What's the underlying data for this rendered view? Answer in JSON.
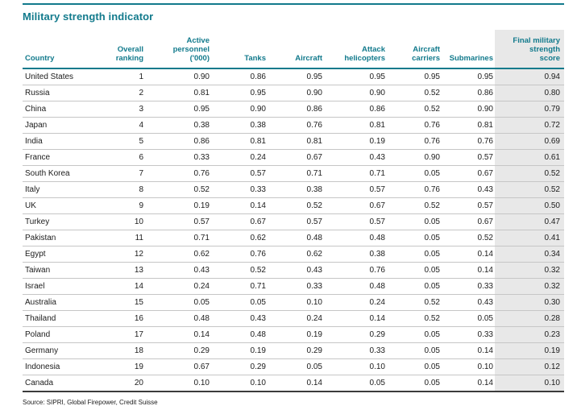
{
  "title": "Military strength indicator",
  "source": "Source: SIPRI, Global Firepower, Credit Suisse",
  "colors": {
    "accent_teal": "#127A8C",
    "highlight_column_bg": "#E8E8E8",
    "row_divider": "#C6C6C6",
    "table_bottom_rule": "#3B3B3B"
  },
  "table": {
    "headers": [
      {
        "label": "Country"
      },
      {
        "label": "Overall\nranking"
      },
      {
        "label": "Active\npersonnel\n('000)"
      },
      {
        "label": "Tanks"
      },
      {
        "label": "Aircraft"
      },
      {
        "label": "Attack\nhelicopters"
      },
      {
        "label": "Aircraft\ncarriers"
      },
      {
        "label": "Submarines"
      },
      {
        "label": "Final military\nstrength\nscore"
      }
    ],
    "rows": [
      [
        "United States",
        "1",
        "0.90",
        "0.86",
        "0.95",
        "0.95",
        "0.95",
        "0.95",
        "0.94"
      ],
      [
        "Russia",
        "2",
        "0.81",
        "0.95",
        "0.90",
        "0.90",
        "0.52",
        "0.86",
        "0.80"
      ],
      [
        "China",
        "3",
        "0.95",
        "0.90",
        "0.86",
        "0.86",
        "0.52",
        "0.90",
        "0.79"
      ],
      [
        "Japan",
        "4",
        "0.38",
        "0.38",
        "0.76",
        "0.81",
        "0.76",
        "0.81",
        "0.72"
      ],
      [
        "India",
        "5",
        "0.86",
        "0.81",
        "0.81",
        "0.19",
        "0.76",
        "0.76",
        "0.69"
      ],
      [
        "France",
        "6",
        "0.33",
        "0.24",
        "0.67",
        "0.43",
        "0.90",
        "0.57",
        "0.61"
      ],
      [
        "South Korea",
        "7",
        "0.76",
        "0.57",
        "0.71",
        "0.71",
        "0.05",
        "0.67",
        "0.52"
      ],
      [
        "Italy",
        "8",
        "0.52",
        "0.33",
        "0.38",
        "0.57",
        "0.76",
        "0.43",
        "0.52"
      ],
      [
        "UK",
        "9",
        "0.19",
        "0.14",
        "0.52",
        "0.67",
        "0.52",
        "0.57",
        "0.50"
      ],
      [
        "Turkey",
        "10",
        "0.57",
        "0.67",
        "0.57",
        "0.57",
        "0.05",
        "0.67",
        "0.47"
      ],
      [
        "Pakistan",
        "11",
        "0.71",
        "0.62",
        "0.48",
        "0.48",
        "0.05",
        "0.52",
        "0.41"
      ],
      [
        "Egypt",
        "12",
        "0.62",
        "0.76",
        "0.62",
        "0.38",
        "0.05",
        "0.14",
        "0.34"
      ],
      [
        "Taiwan",
        "13",
        "0.43",
        "0.52",
        "0.43",
        "0.76",
        "0.05",
        "0.14",
        "0.32"
      ],
      [
        "Israel",
        "14",
        "0.24",
        "0.71",
        "0.33",
        "0.48",
        "0.05",
        "0.33",
        "0.32"
      ],
      [
        "Australia",
        "15",
        "0.05",
        "0.05",
        "0.10",
        "0.24",
        "0.52",
        "0.43",
        "0.30"
      ],
      [
        "Thailand",
        "16",
        "0.48",
        "0.43",
        "0.24",
        "0.14",
        "0.52",
        "0.05",
        "0.28"
      ],
      [
        "Poland",
        "17",
        "0.14",
        "0.48",
        "0.19",
        "0.29",
        "0.05",
        "0.33",
        "0.23"
      ],
      [
        "Germany",
        "18",
        "0.29",
        "0.19",
        "0.29",
        "0.33",
        "0.05",
        "0.14",
        "0.19"
      ],
      [
        "Indonesia",
        "19",
        "0.67",
        "0.29",
        "0.05",
        "0.10",
        "0.05",
        "0.10",
        "0.12"
      ],
      [
        "Canada",
        "20",
        "0.10",
        "0.10",
        "0.14",
        "0.05",
        "0.05",
        "0.14",
        "0.10"
      ]
    ]
  }
}
